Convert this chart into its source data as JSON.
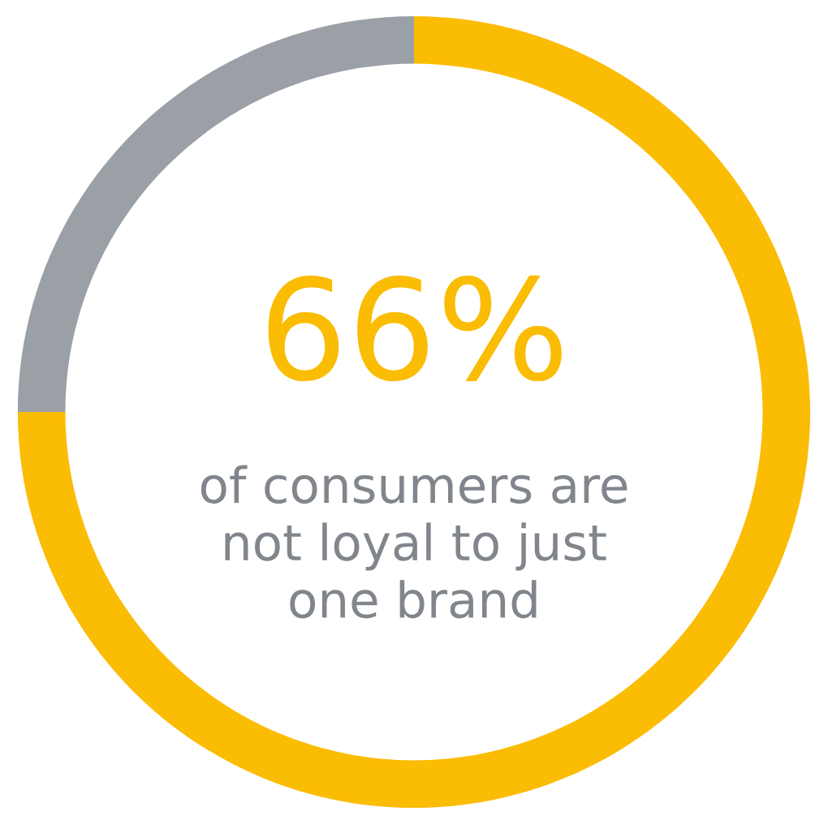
{
  "chart_data": {
    "type": "donut",
    "title": "66%",
    "subtitle": "of consumers are\nnot loyal to just\none brand",
    "categories": [
      null,
      null
    ],
    "values": [
      75,
      25
    ],
    "colors": [
      "#fbbc04",
      "#9aa0a6"
    ],
    "legend": false
  }
}
